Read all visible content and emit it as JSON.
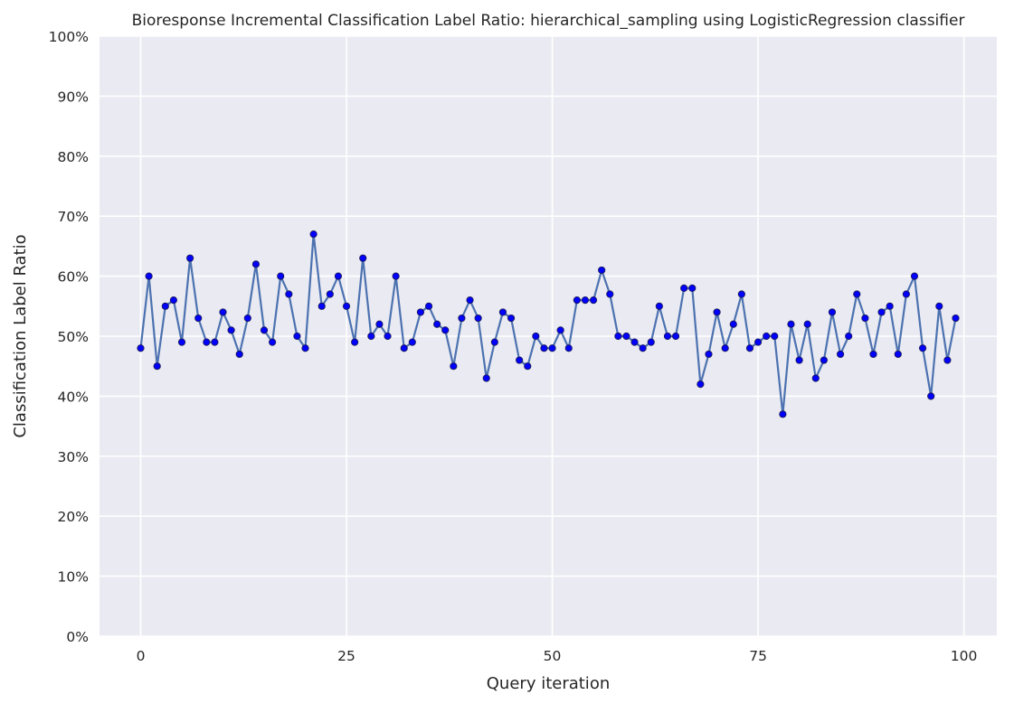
{
  "chart_data": {
    "type": "line",
    "title": "Bioresponse Incremental Classification Label Ratio: hierarchical_sampling using LogisticRegression classifier",
    "xlabel": "Query iteration",
    "ylabel": "Classification Label Ratio",
    "xlim": [
      -5,
      104
    ],
    "ylim": [
      0,
      100
    ],
    "x_ticks": [
      0,
      25,
      50,
      75,
      100
    ],
    "x_tick_labels": [
      "0",
      "25",
      "50",
      "75",
      "100"
    ],
    "y_ticks": [
      0,
      10,
      20,
      30,
      40,
      50,
      60,
      70,
      80,
      90,
      100
    ],
    "y_tick_labels": [
      "0%",
      "10%",
      "20%",
      "30%",
      "40%",
      "50%",
      "60%",
      "70%",
      "80%",
      "90%",
      "100%"
    ],
    "grid": true,
    "legend": "none",
    "colors": {
      "background": "#eaeaf2",
      "line": "#4c72b0",
      "marker": "#0000ff",
      "grid": "#ffffff"
    },
    "series": [
      {
        "x": [
          0,
          1,
          2,
          3,
          4,
          5,
          6,
          7,
          8,
          9,
          10,
          11,
          12,
          13,
          14,
          15,
          16,
          17,
          18,
          19,
          20,
          21,
          22,
          23,
          24,
          25,
          26,
          27,
          28,
          29,
          30,
          31,
          32,
          33,
          34,
          35,
          36,
          37,
          38,
          39,
          40,
          41,
          42,
          43,
          44,
          45,
          46,
          47,
          48,
          49,
          50,
          51,
          52,
          53,
          54,
          55,
          56,
          57,
          58,
          59,
          60,
          61,
          62,
          63,
          64,
          65,
          66,
          67,
          68,
          69,
          70,
          71,
          72,
          73,
          74,
          75,
          76,
          77,
          78,
          79,
          80,
          81,
          82,
          83,
          84,
          85,
          86,
          87,
          88,
          89,
          90,
          91,
          92,
          93,
          94,
          95,
          96,
          97,
          98,
          99
        ],
        "values": [
          48,
          60,
          45,
          55,
          56,
          49,
          63,
          53,
          49,
          49,
          54,
          51,
          47,
          53,
          62,
          51,
          49,
          60,
          57,
          50,
          48,
          67,
          55,
          57,
          60,
          55,
          49,
          63,
          50,
          52,
          50,
          60,
          48,
          49,
          54,
          55,
          52,
          51,
          45,
          53,
          56,
          53,
          43,
          49,
          54,
          53,
          46,
          45,
          50,
          48,
          48,
          51,
          48,
          56,
          56,
          56,
          61,
          57,
          50,
          50,
          49,
          48,
          49,
          55,
          50,
          50,
          58,
          58,
          42,
          47,
          54,
          48,
          52,
          57,
          48,
          49,
          50,
          50,
          37,
          52,
          46,
          52,
          43,
          46,
          54,
          47,
          50,
          57,
          53,
          47,
          54,
          55,
          47,
          57,
          60,
          48,
          40,
          55,
          46,
          53
        ]
      }
    ]
  }
}
